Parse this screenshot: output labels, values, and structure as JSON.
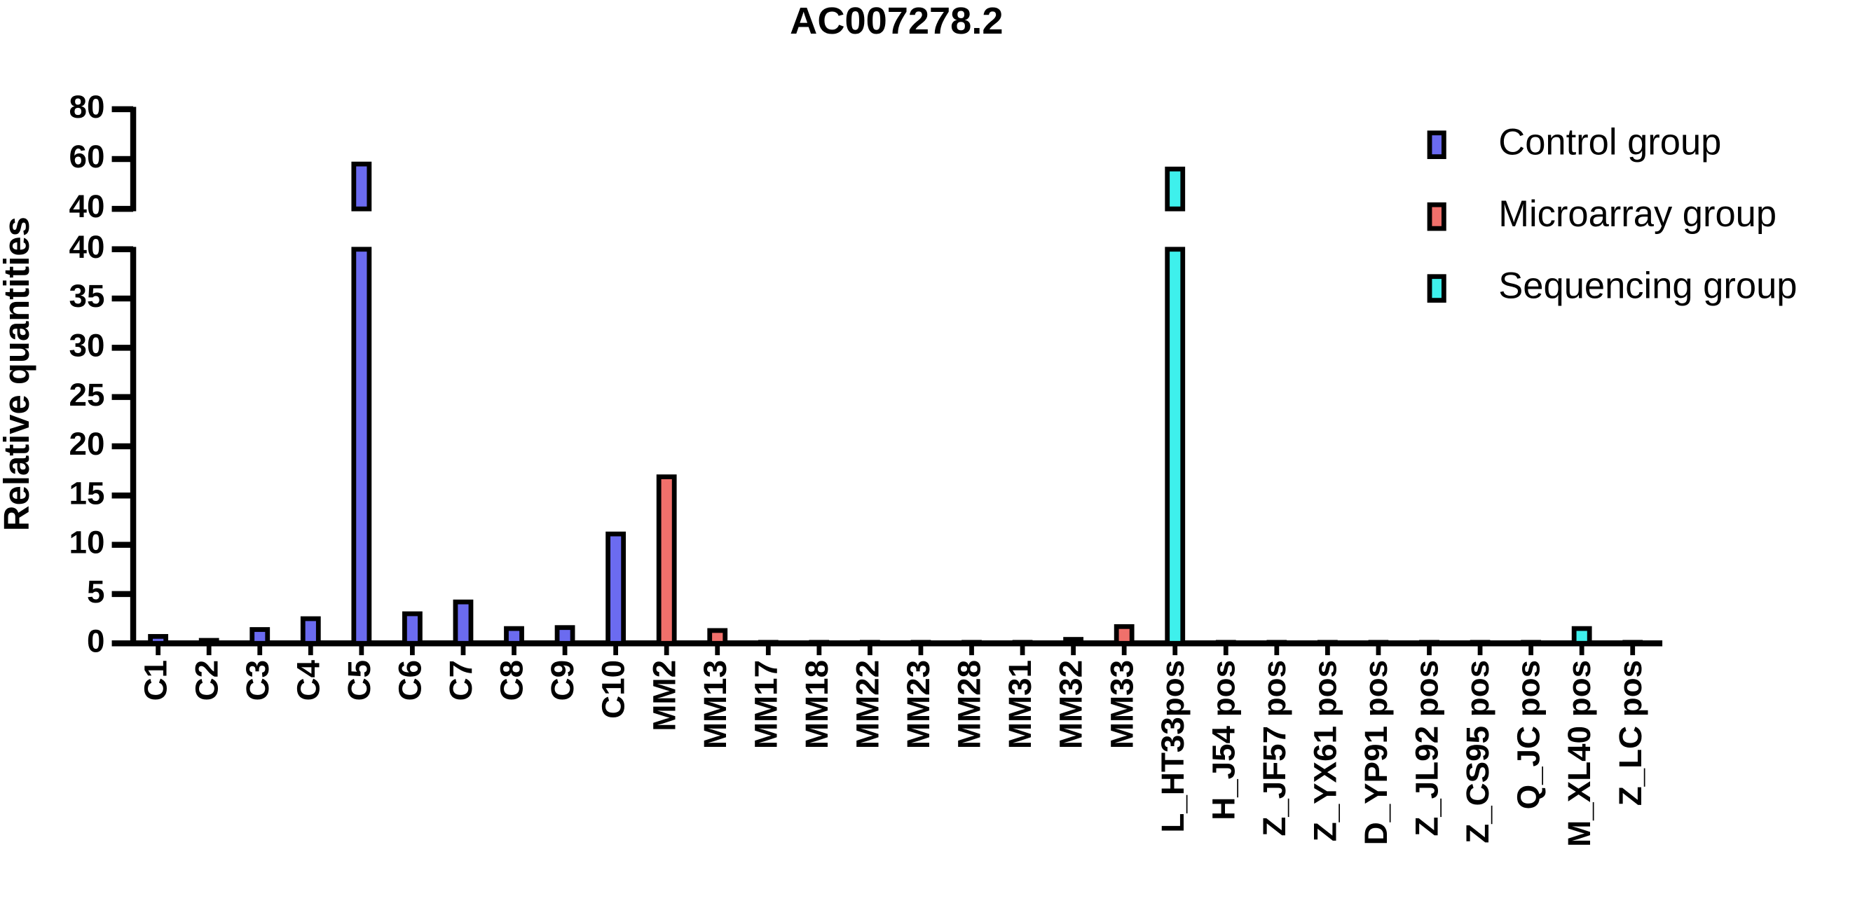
{
  "chart_data": {
    "type": "bar",
    "title": "AC007278.2",
    "y_label": "Relative quantities",
    "categories": [
      "C1",
      "C2",
      "C3",
      "C4",
      "C5",
      "C6",
      "C7",
      "C8",
      "C9",
      "C10",
      "MM2",
      "MM13",
      "MM17",
      "MM18",
      "MM22",
      "MM23",
      "MM28",
      "MM31",
      "MM32",
      "MM33",
      "L_HT33pos",
      "H_J54 pos",
      "Z_JF57 pos",
      "Z_YX61 pos",
      "D_YP91 pos",
      "Z_JL92 pos",
      "Z_CS95 pos",
      "Q_JC pos",
      "M_XL40 pos",
      "Z_LC pos"
    ],
    "series": [
      {
        "name": "Control group",
        "color": "#6b6bf0",
        "values": [
          0.7,
          0.3,
          1.4,
          2.5,
          58,
          3.0,
          4.2,
          1.5,
          1.6,
          11.1,
          null,
          null,
          null,
          null,
          null,
          null,
          null,
          null,
          null,
          null,
          null,
          null,
          null,
          null,
          null,
          null,
          null,
          null,
          null,
          null
        ]
      },
      {
        "name": "Microarray group",
        "color": "#f0706b",
        "values": [
          null,
          null,
          null,
          null,
          null,
          null,
          null,
          null,
          null,
          null,
          16.9,
          1.3,
          0.1,
          0.1,
          0.1,
          0.1,
          0.1,
          0.1,
          0.4,
          1.7,
          null,
          null,
          null,
          null,
          null,
          null,
          null,
          null,
          null,
          null
        ]
      },
      {
        "name": "Sequencing group",
        "color": "#3ef0ec",
        "values": [
          null,
          null,
          null,
          null,
          null,
          null,
          null,
          null,
          null,
          null,
          null,
          null,
          null,
          null,
          null,
          null,
          null,
          null,
          null,
          null,
          56,
          0.1,
          0.1,
          0.1,
          0.1,
          0.1,
          0.1,
          0.1,
          1.5,
          0.1
        ]
      }
    ],
    "segments": [
      {
        "ylim": [
          0,
          40
        ],
        "yticks": [
          0,
          5,
          10,
          15,
          20,
          25,
          30,
          35,
          40
        ]
      },
      {
        "ylim": [
          40,
          80
        ],
        "yticks": [
          40,
          60,
          80
        ]
      }
    ]
  }
}
